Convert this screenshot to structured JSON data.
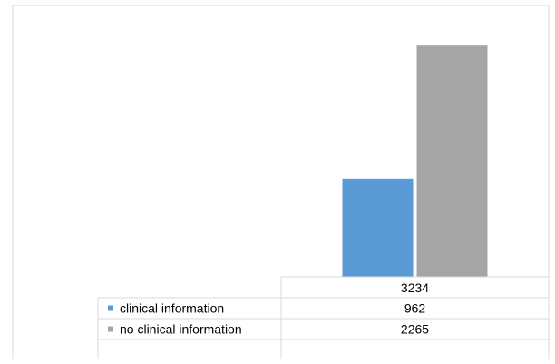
{
  "chart_data": {
    "type": "bar",
    "categories": [
      "3234"
    ],
    "series": [
      {
        "name": "clinical information",
        "values": [
          962
        ],
        "color": "#5b9bd5"
      },
      {
        "name": "no clinical information",
        "values": [
          2265
        ],
        "color": "#a5a5a5"
      }
    ],
    "title": "",
    "xlabel": "",
    "ylabel": "",
    "ylim": [
      0,
      2400
    ],
    "grid": false,
    "legend": "data-table"
  }
}
